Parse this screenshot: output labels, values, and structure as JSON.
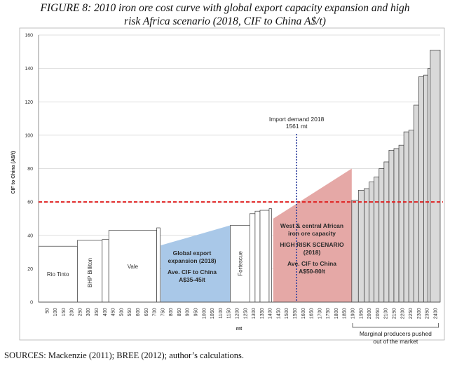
{
  "figure": {
    "title_line1": "FIGURE 8: 2010 iron ore cost curve with global export capacity expansion and high",
    "title_line2": "risk Africa scenario (2018, CIF to China A$/t)",
    "sources": "SOURCES: Mackenzie (2011); BREE (2012); author’s calculations."
  },
  "chart_data": {
    "type": "bar",
    "title": "2010 iron ore cost curve with global export capacity expansion and high risk Africa scenario (2018, CIF to China A$/t)",
    "xlabel": "mt",
    "ylabel": "CIF to China (A$/t)",
    "ylim": [
      0,
      160
    ],
    "xlim": [
      0,
      2430
    ],
    "y_ticks": [
      0,
      20,
      40,
      60,
      80,
      100,
      120,
      140,
      160
    ],
    "x_ticks": [
      50,
      100,
      150,
      200,
      250,
      300,
      350,
      400,
      450,
      500,
      550,
      600,
      650,
      700,
      750,
      800,
      850,
      900,
      950,
      1000,
      1050,
      1100,
      1150,
      1200,
      1250,
      1300,
      1350,
      1400,
      1450,
      1500,
      1550,
      1600,
      1650,
      1700,
      1750,
      1800,
      1850,
      1900,
      1950,
      2000,
      2050,
      2100,
      2150,
      2200,
      2250,
      2300,
      2350,
      2400
    ],
    "grid": true,
    "bars": [
      {
        "label": "Rio Tinto",
        "x0": 0,
        "x1": 235,
        "value": 33.5
      },
      {
        "label": "BHP Billiton",
        "x0": 235,
        "x1": 385,
        "value": 37
      },
      {
        "label": "",
        "x0": 385,
        "x1": 425,
        "value": 37.5
      },
      {
        "label": "Vale",
        "x0": 425,
        "x1": 715,
        "value": 43
      },
      {
        "label": "",
        "x0": 715,
        "x1": 735,
        "value": 44.5
      },
      {
        "label": "Fortescue",
        "x0": 1160,
        "x1": 1278,
        "value": 46
      },
      {
        "label": "",
        "x0": 1278,
        "x1": 1310,
        "value": 53
      },
      {
        "label": "",
        "x0": 1310,
        "x1": 1340,
        "value": 54.5
      },
      {
        "label": "",
        "x0": 1340,
        "x1": 1395,
        "value": 55
      },
      {
        "label": "",
        "x0": 1395,
        "x1": 1410,
        "value": 56
      },
      {
        "label": "",
        "x0": 1895,
        "x1": 1935,
        "value": 61
      },
      {
        "label": "",
        "x0": 1935,
        "x1": 1970,
        "value": 67
      },
      {
        "label": "",
        "x0": 1970,
        "x1": 2000,
        "value": 68
      },
      {
        "label": "",
        "x0": 2000,
        "x1": 2030,
        "value": 72
      },
      {
        "label": "",
        "x0": 2030,
        "x1": 2060,
        "value": 75
      },
      {
        "label": "",
        "x0": 2060,
        "x1": 2090,
        "value": 80
      },
      {
        "label": "",
        "x0": 2090,
        "x1": 2120,
        "value": 84
      },
      {
        "label": "",
        "x0": 2120,
        "x1": 2150,
        "value": 91
      },
      {
        "label": "",
        "x0": 2150,
        "x1": 2180,
        "value": 92
      },
      {
        "label": "",
        "x0": 2180,
        "x1": 2210,
        "value": 94
      },
      {
        "label": "",
        "x0": 2210,
        "x1": 2240,
        "value": 102
      },
      {
        "label": "",
        "x0": 2240,
        "x1": 2270,
        "value": 103
      },
      {
        "label": "",
        "x0": 2270,
        "x1": 2300,
        "value": 118
      },
      {
        "label": "",
        "x0": 2300,
        "x1": 2330,
        "value": 135
      },
      {
        "label": "",
        "x0": 2330,
        "x1": 2355,
        "value": 136
      },
      {
        "label": "",
        "x0": 2355,
        "x1": 2370,
        "value": 140
      },
      {
        "label": "",
        "x0": 2370,
        "x1": 2430,
        "value": 151
      }
    ],
    "areas": [
      {
        "name": "global-export-expansion",
        "color": "#a9c8e8",
        "polygon": [
          [
            740,
            0
          ],
          [
            740,
            34
          ],
          [
            1160,
            46
          ],
          [
            1160,
            0
          ]
        ],
        "text": [
          "Global export",
          "expansion (2018)",
          "",
          "Ave. CIF to China",
          "A$35-45/t"
        ]
      },
      {
        "name": "high-risk-africa",
        "color": "#e5a8a6",
        "polygon": [
          [
            1420,
            0
          ],
          [
            1420,
            50
          ],
          [
            1895,
            80
          ],
          [
            1895,
            0
          ]
        ],
        "text": [
          "West & central African",
          "iron ore capacity",
          "",
          "HIGH RISK SCENARIO",
          "(2018)",
          "",
          "Ave. CIF to China",
          "A$50-80/t"
        ]
      }
    ],
    "reference_lines": [
      {
        "type": "horizontal",
        "y": 60,
        "color": "#e02020",
        "style": "dashed"
      },
      {
        "type": "vertical",
        "x": 1561,
        "color": "#2d3e9e",
        "style": "dotted",
        "label": [
          "Import demand 2018",
          "1561 mt"
        ]
      }
    ],
    "annotation_bracket": {
      "x0": 1900,
      "x1": 2420,
      "text": [
        "Marginal producers pushed",
        "out of the market"
      ]
    }
  }
}
